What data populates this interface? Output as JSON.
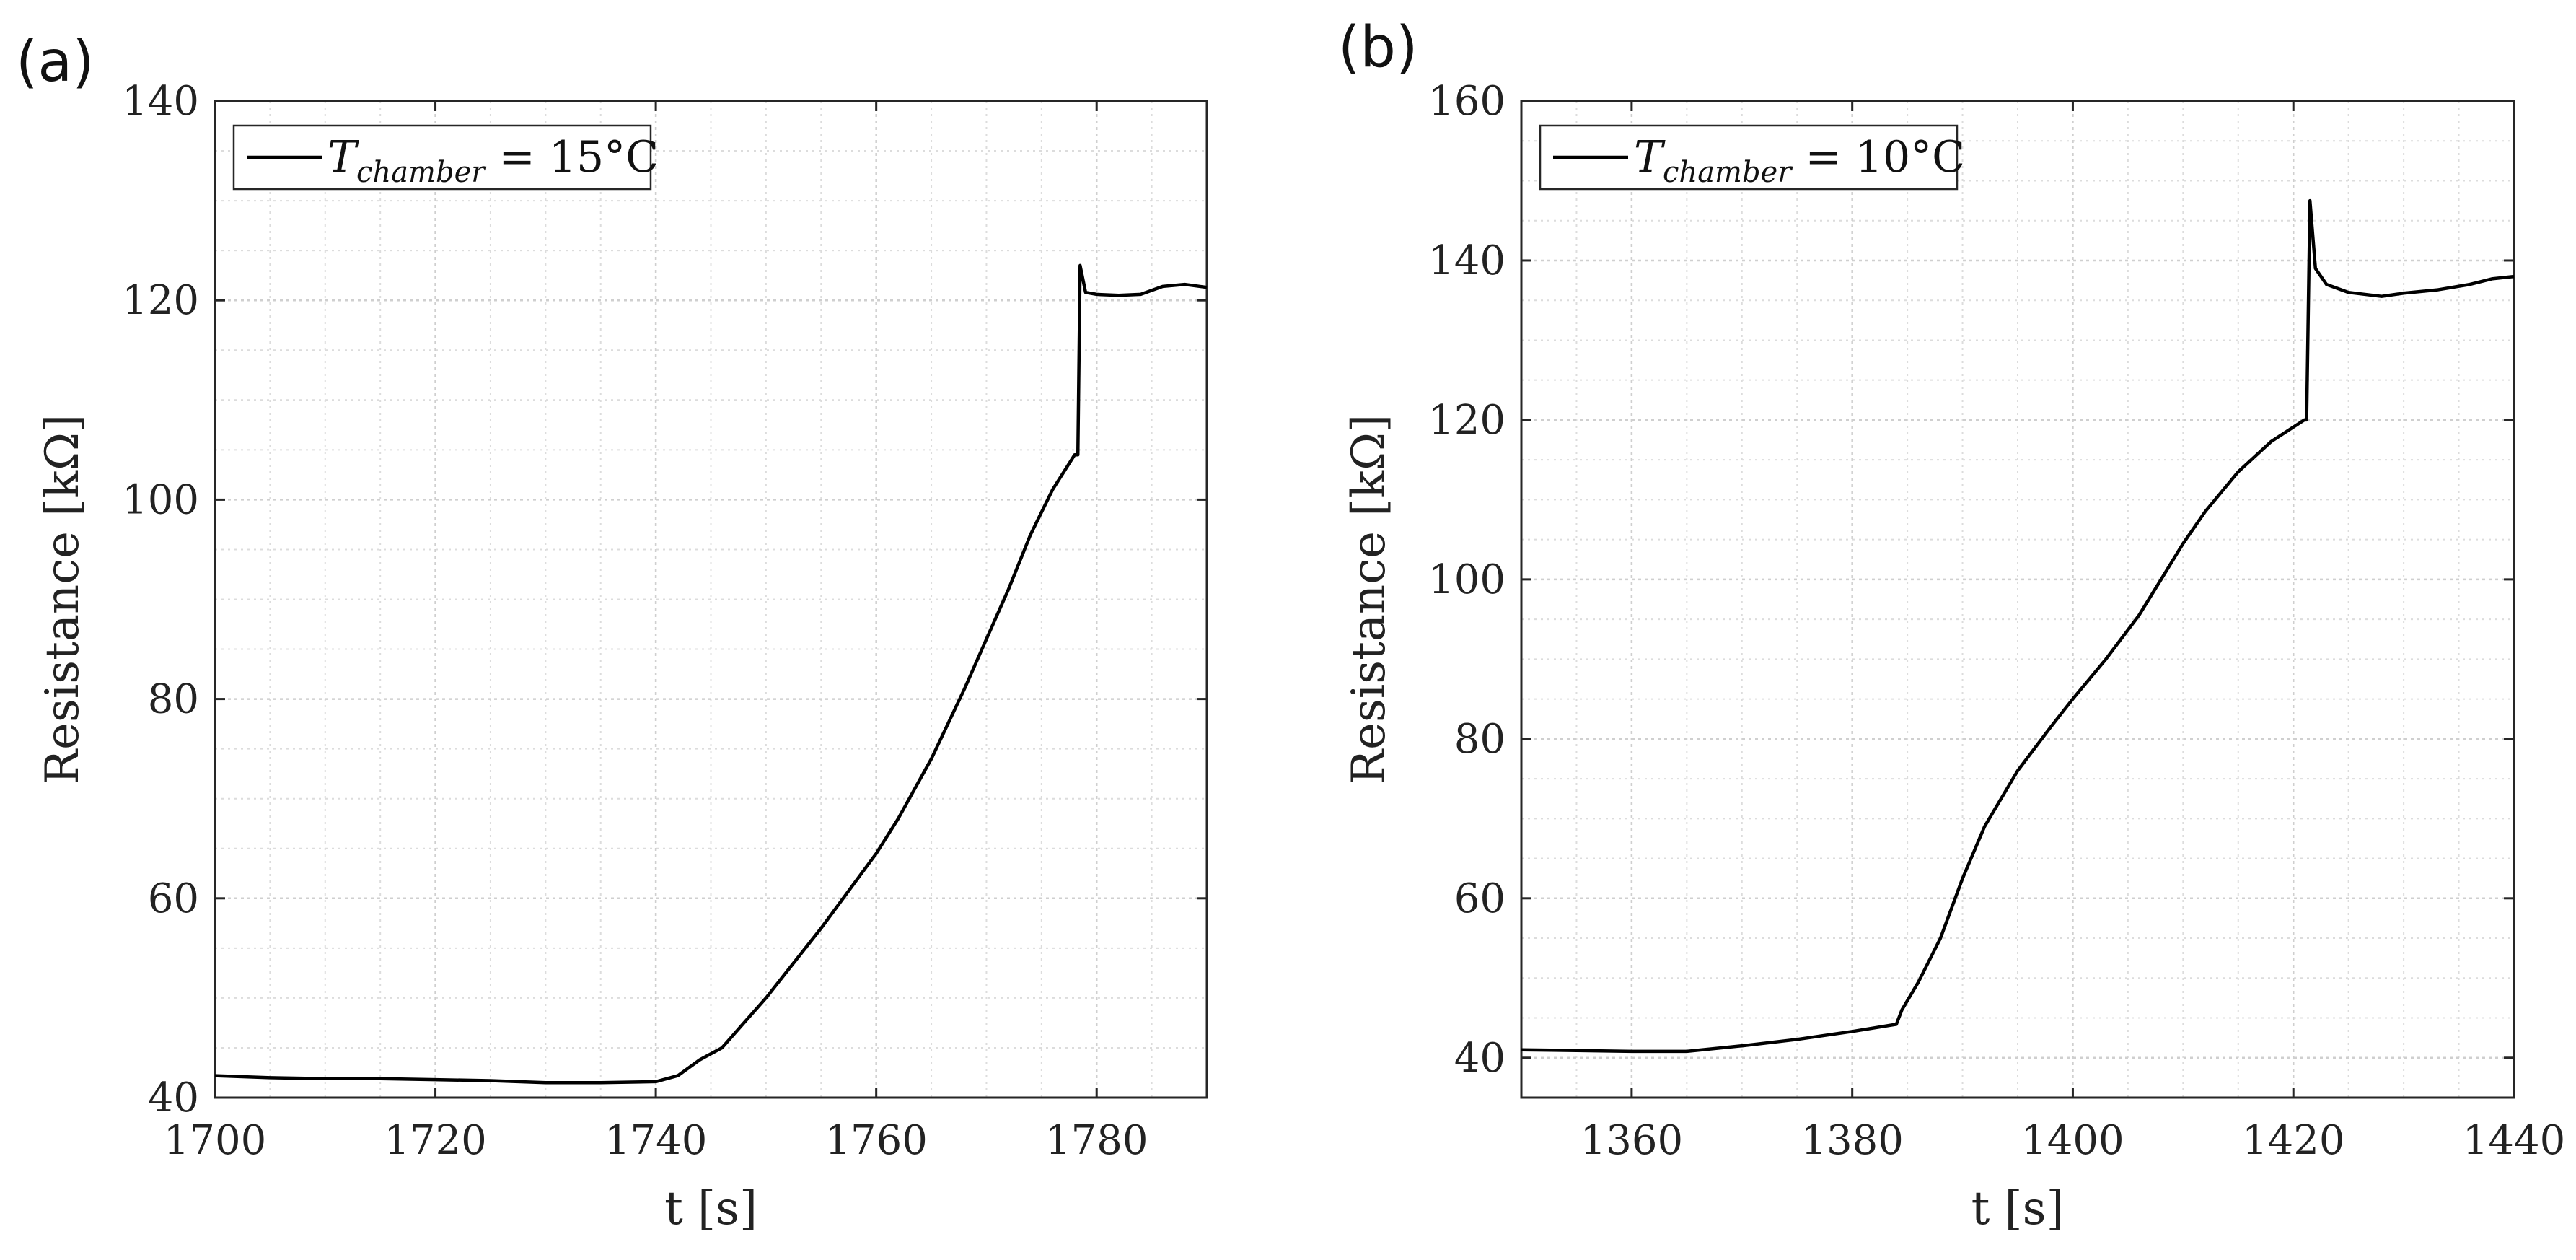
{
  "chart_data": [
    {
      "type": "line",
      "panel_label": "(a)",
      "xlabel": "t [s]",
      "ylabel": "Resistance [kΩ]",
      "xlim": [
        1700,
        1790
      ],
      "ylim": [
        40,
        140
      ],
      "xticks": [
        1700,
        1720,
        1740,
        1760,
        1780
      ],
      "yticks": [
        40,
        60,
        80,
        100,
        120,
        140
      ],
      "grid": true,
      "legend_position": "top-left",
      "legend": {
        "symbol": "T",
        "subscript": "chamber",
        "value": " = 15°C"
      },
      "color": "#000000",
      "series": [
        {
          "x": [
            1700,
            1705,
            1710,
            1715,
            1720,
            1725,
            1730,
            1735,
            1740,
            1742,
            1744,
            1746,
            1748,
            1750,
            1752,
            1755,
            1758,
            1760,
            1762,
            1765,
            1768,
            1770,
            1772,
            1774,
            1776,
            1778,
            1778.3,
            1778.5,
            1779,
            1780,
            1782,
            1784,
            1786,
            1788,
            1790
          ],
          "y": [
            42.2,
            42.0,
            41.9,
            41.9,
            41.8,
            41.7,
            41.5,
            41.5,
            41.6,
            42.2,
            43.8,
            45.0,
            47.5,
            50.0,
            52.8,
            57.0,
            61.5,
            64.5,
            68.0,
            74.0,
            81.0,
            86.0,
            91.0,
            96.5,
            101.0,
            104.5,
            104.5,
            123.5,
            120.8,
            120.6,
            120.5,
            120.6,
            121.4,
            121.6,
            121.3
          ]
        }
      ]
    },
    {
      "type": "line",
      "panel_label": "(b)",
      "xlabel": "t [s]",
      "ylabel": "Resistance [kΩ]",
      "xlim": [
        1350,
        1440
      ],
      "ylim": [
        35,
        160
      ],
      "xticks": [
        1360,
        1380,
        1400,
        1420,
        1440
      ],
      "yticks": [
        40,
        60,
        80,
        100,
        120,
        140,
        160
      ],
      "grid": true,
      "legend_position": "top-left",
      "legend": {
        "symbol": "T",
        "subscript": "chamber",
        "value": " = 10°C"
      },
      "color": "#000000",
      "series": [
        {
          "x": [
            1350,
            1355,
            1360,
            1365,
            1370,
            1375,
            1380,
            1384,
            1384.5,
            1386,
            1388,
            1390,
            1392,
            1395,
            1398,
            1400,
            1403,
            1406,
            1408,
            1410,
            1412,
            1415,
            1418,
            1421,
            1421.2,
            1421.5,
            1422,
            1423,
            1425,
            1428,
            1430,
            1433,
            1436,
            1438,
            1440
          ],
          "y": [
            41.0,
            40.9,
            40.8,
            40.8,
            41.5,
            42.3,
            43.3,
            44.2,
            46.0,
            49.5,
            55.0,
            62.5,
            69.0,
            76.0,
            81.5,
            85.0,
            90.0,
            95.5,
            100.0,
            104.5,
            108.5,
            113.5,
            117.3,
            120.0,
            120.0,
            147.5,
            139.0,
            137.0,
            136.0,
            135.5,
            135.9,
            136.3,
            137.0,
            137.7,
            138.0
          ]
        }
      ]
    }
  ]
}
